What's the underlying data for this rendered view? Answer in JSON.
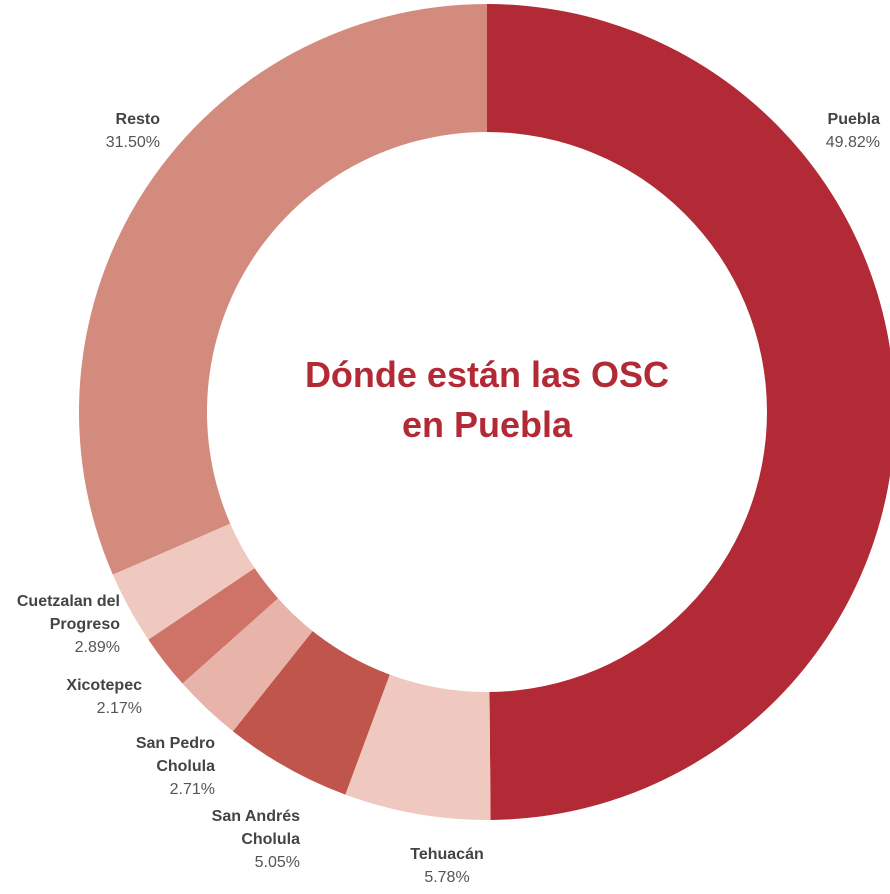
{
  "chart_data": {
    "type": "donut",
    "title": "Dónde están las OSC en Puebla",
    "categories": [
      "Puebla",
      "Tehuacán",
      "San Andrés Cholula",
      "San Pedro Cholula",
      "Xicotepec",
      "Cuetzalan del Progreso",
      "Resto"
    ],
    "values": [
      49.82,
      5.78,
      5.05,
      2.71,
      2.17,
      2.89,
      31.5
    ],
    "value_labels": [
      "49.82%",
      "5.78%",
      "5.05%",
      "2.71%",
      "2.17%",
      "2.89%",
      "31.50%"
    ],
    "colors": [
      "#b22a35",
      "#efc9bf",
      "#c0554b",
      "#e8b3a8",
      "#cf7368",
      "#efc9bf",
      "#d38b7e"
    ]
  }
}
